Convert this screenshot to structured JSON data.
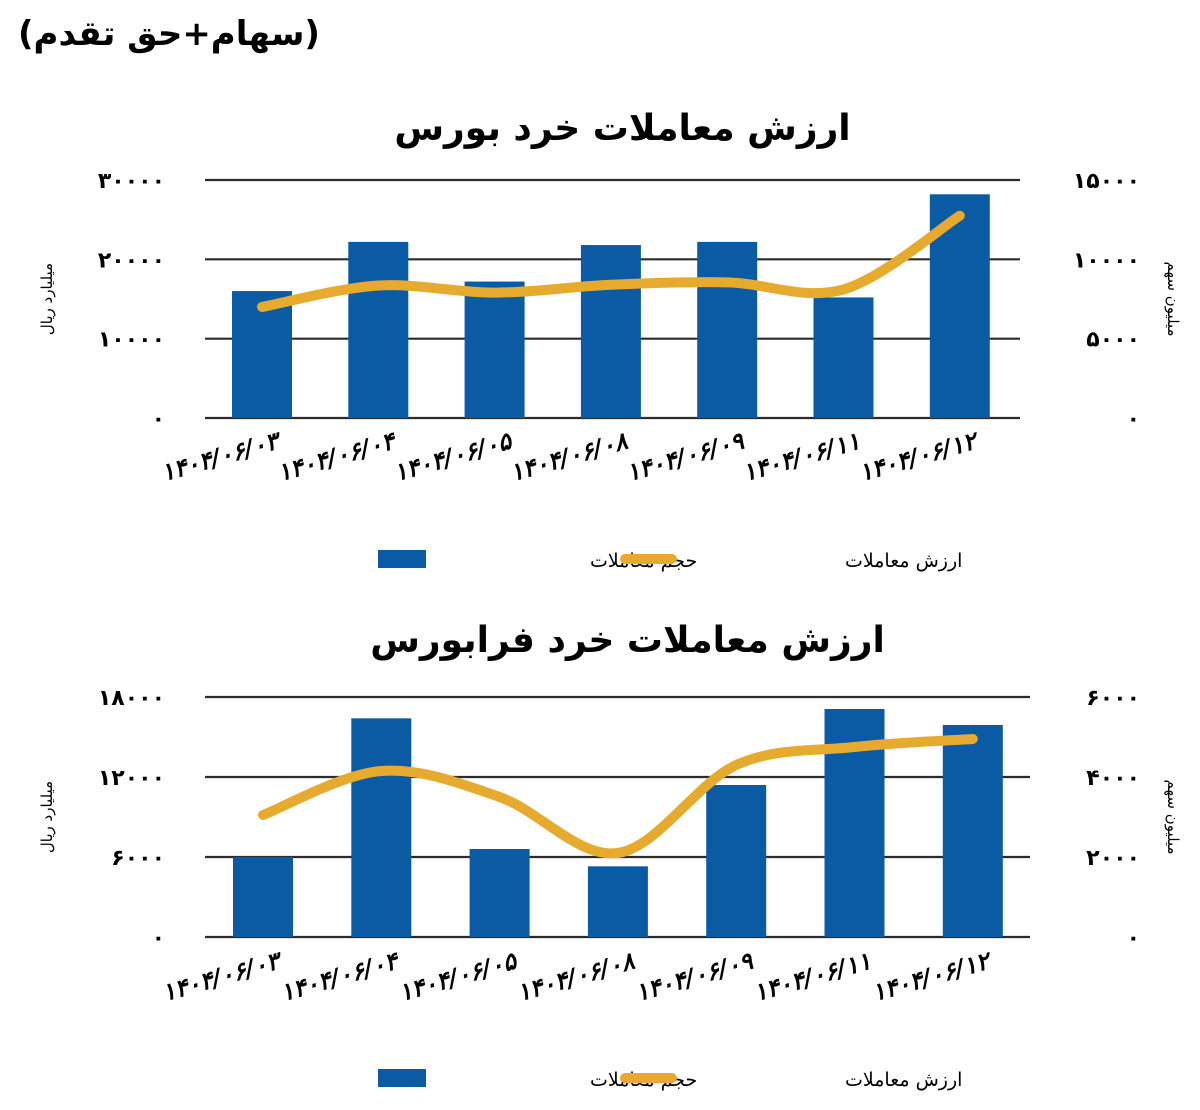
{
  "header_note": "(سهام+حق تقدم)",
  "colors": {
    "bar": "#0a5ba4",
    "line": "#e6ab2e",
    "grid": "#2b2b2b",
    "text": "#000000"
  },
  "chart_data": [
    {
      "type": "bar",
      "title": "ارزش معاملات خرد بورس",
      "categories": [
        "1404/06/03",
        "1404/06/04",
        "1404/06/05",
        "1404/06/08",
        "1404/06/09",
        "1404/06/11",
        "1404/06/12"
      ],
      "category_labels": [
        "۱۴۰۴/۰۶/۰۳",
        "۱۴۰۴/۰۶/۰۴",
        "۱۴۰۴/۰۶/۰۵",
        "۱۴۰۴/۰۶/۰۸",
        "۱۴۰۴/۰۶/۰۹",
        "۱۴۰۴/۰۶/۱۱",
        "۱۴۰۴/۰۶/۱۲"
      ],
      "series": [
        {
          "name": "حجم معاملات",
          "axis": "right",
          "values": [
            8000,
            11100,
            8600,
            10900,
            11100,
            7600,
            14100
          ]
        },
        {
          "name": "ارزش معاملات",
          "axis": "left",
          "values": [
            14000,
            16700,
            15800,
            16800,
            17100,
            16200,
            25500
          ]
        }
      ],
      "y_left": {
        "label": "میلیارد ریال",
        "ylim": [
          0,
          30000
        ],
        "ticks": [
          0,
          10000,
          20000,
          30000
        ],
        "tick_labels": [
          "۰",
          "۱۰۰۰۰",
          "۲۰۰۰۰",
          "۳۰۰۰۰"
        ]
      },
      "y_right": {
        "label": "میلیون سهم",
        "ylim": [
          0,
          15000
        ],
        "ticks": [
          0,
          5000,
          10000,
          15000
        ],
        "tick_labels": [
          "۰",
          "۵۰۰۰",
          "۱۰۰۰۰",
          "۱۵۰۰۰"
        ]
      },
      "grid": true,
      "legend_position": "bottom"
    },
    {
      "type": "bar",
      "title": "ارزش معاملات خرد فرابورس",
      "categories": [
        "1404/06/03",
        "1404/06/04",
        "1404/06/05",
        "1404/06/08",
        "1404/06/09",
        "1404/06/11",
        "1404/06/12"
      ],
      "category_labels": [
        "۱۴۰۴/۰۶/۰۳",
        "۱۴۰۴/۰۶/۰۴",
        "۱۴۰۴/۰۶/۰۵",
        "۱۴۰۴/۰۶/۰۸",
        "۱۴۰۴/۰۶/۰۹",
        "۱۴۰۴/۰۶/۱۱",
        "۱۴۰۴/۰۶/۱۲"
      ],
      "series": [
        {
          "name": "حجم معاملات",
          "axis": "left",
          "values": [
            6000,
            16400,
            6600,
            5300,
            11400,
            17100,
            15900
          ]
        },
        {
          "name": "ارزش معاملات",
          "axis": "right",
          "values": [
            3050,
            4150,
            3500,
            2100,
            4300,
            4750,
            4950
          ]
        }
      ],
      "y_left": {
        "label": "میلیارد ریال",
        "ylim": [
          0,
          18000
        ],
        "ticks": [
          0,
          6000,
          12000,
          18000
        ],
        "tick_labels": [
          "۰",
          "۶۰۰۰",
          "۱۲۰۰۰",
          "۱۸۰۰۰"
        ]
      },
      "y_right": {
        "label": "میلیون سهم",
        "ylim": [
          0,
          6000
        ],
        "ticks": [
          0,
          2000,
          4000,
          6000
        ],
        "tick_labels": [
          "۰",
          "۲۰۰۰",
          "۴۰۰۰",
          "۶۰۰۰"
        ]
      },
      "grid": true,
      "legend_position": "bottom"
    }
  ]
}
